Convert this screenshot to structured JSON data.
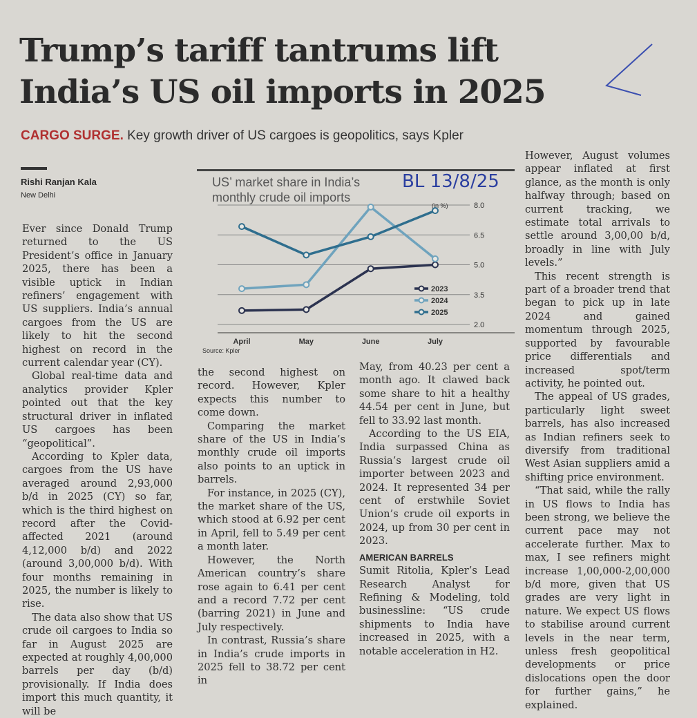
{
  "headline": [
    "Trump’s tariff tantrums lift",
    "India’s US oil imports in 2025"
  ],
  "deck": {
    "kicker": "CARGO SURGE.",
    "text": " Key growth driver of US cargoes is geopolitics, says Kpler"
  },
  "byline": {
    "author": "Rishi Ranjan Kala",
    "place": "New Delhi"
  },
  "handwritten_note": "BL 13/8/25",
  "columns": [
    {
      "paras": [
        "Ever since Donald Trump returned to the US President’s office in January 2025, there has been a visible uptick in Indian refiners’ engagement with US suppliers. India’s annual cargoes from the US are likely to hit the second highest on record in the current calendar year (CY).",
        "Global real-time data and analytics provider Kpler pointed out that the key structural driver in inflated US cargoes has been “geopolitical”.",
        "According to Kpler data, cargoes from the US have averaged around 2,93,000 b/d in 2025 (CY) so far, which is the third highest on record after the Covid-affected 2021 (around 4,12,000 b/d) and 2022 (around 3,00,000 b/d). With four months remaining in 2025, the number is likely to rise.",
        "The data also show that US crude oil cargoes to India so far in August 2025 are expected at roughly 4,00,000 barrels per day (b/d) provisionally. If India does import this much quantity, it will be"
      ]
    },
    {
      "paras": [
        "the second highest on record. However, Kpler expects this number to come down.",
        "Comparing the market share of the US in India’s monthly crude oil imports also points to an uptick in barrels.",
        "For instance, in 2025 (CY), the market share of the US, which stood at 6.92 per cent in April, fell to 5.49 per cent a month later.",
        "However, the North American country’s share rose again to 6.41 per cent and a record 7.72 per cent (barring 2021) in June and July respectively.",
        "In contrast, Russia’s share in India’s crude imports in 2025 fell to 38.72 per cent in"
      ]
    },
    {
      "paras": [
        "May, from 40.23 per cent a month ago. It clawed back some share to hit a healthy 44.54 per cent in June, but fell to 33.92 last month.",
        "According to the US EIA, India surpassed China as Russia’s largest crude oil importer between 2023 and 2024. It represented 34 per cent of erstwhile Soviet Union’s crude oil exports in 2024, up from 30 per cent in 2023."
      ],
      "subhead": "AMERICAN BARRELS",
      "paras2": [
        "Sumit Ritolia, Kpler’s Lead Research Analyst for Refining & Modeling, told businessline: “US crude shipments to India have increased in 2025, with a notable acceleration in H2."
      ]
    },
    {
      "paras": [
        "However, August volumes appear inflated at first glance, as the month is only halfway through; based on current tracking, we estimate total arrivals to settle around 3,00,00 b/d, broadly in line with July levels.”",
        "This recent strength is part of a broader trend that began to pick up in late 2024 and gained momentum through 2025, supported by favourable price differentials and increased spot/term activity, he pointed out.",
        "The appeal of US grades, particularly light sweet barrels, has also increased as Indian refiners seek to diversify from traditional West Asian suppliers amid a shifting price environment.",
        "“That said, while the rally in US flows to India has been strong, we believe the current pace may not accelerate further. Max to max, I see refiners might increase 1,00,000-2,00,000 b/d more, given that US grades are very light in nature. We expect US flows to stabilise around current levels in the near term, unless fresh geopolitical developments or price dislocations open the door for further gains,” he explained."
      ]
    }
  ],
  "chart_data": {
    "type": "line",
    "title": "US’ market share in India’s monthly crude oil imports",
    "unit": "(in %)",
    "categories": [
      "April",
      "May",
      "June",
      "July"
    ],
    "yticks": [
      "2.0",
      "3.5",
      "5.0",
      "6.5",
      "8.0"
    ],
    "ylim": [
      2.0,
      8.0
    ],
    "series": [
      {
        "name": "2023",
        "color": "#2c3350",
        "values": [
          2.7,
          2.75,
          4.8,
          5.0
        ]
      },
      {
        "name": "2024",
        "color": "#6fa3bd",
        "values": [
          3.8,
          4.0,
          7.9,
          5.3
        ]
      },
      {
        "name": "2025",
        "color": "#2f6e8e",
        "values": [
          6.92,
          5.49,
          6.41,
          7.72
        ]
      }
    ],
    "source": "Source: Kpler",
    "legend": "bottom-right"
  }
}
